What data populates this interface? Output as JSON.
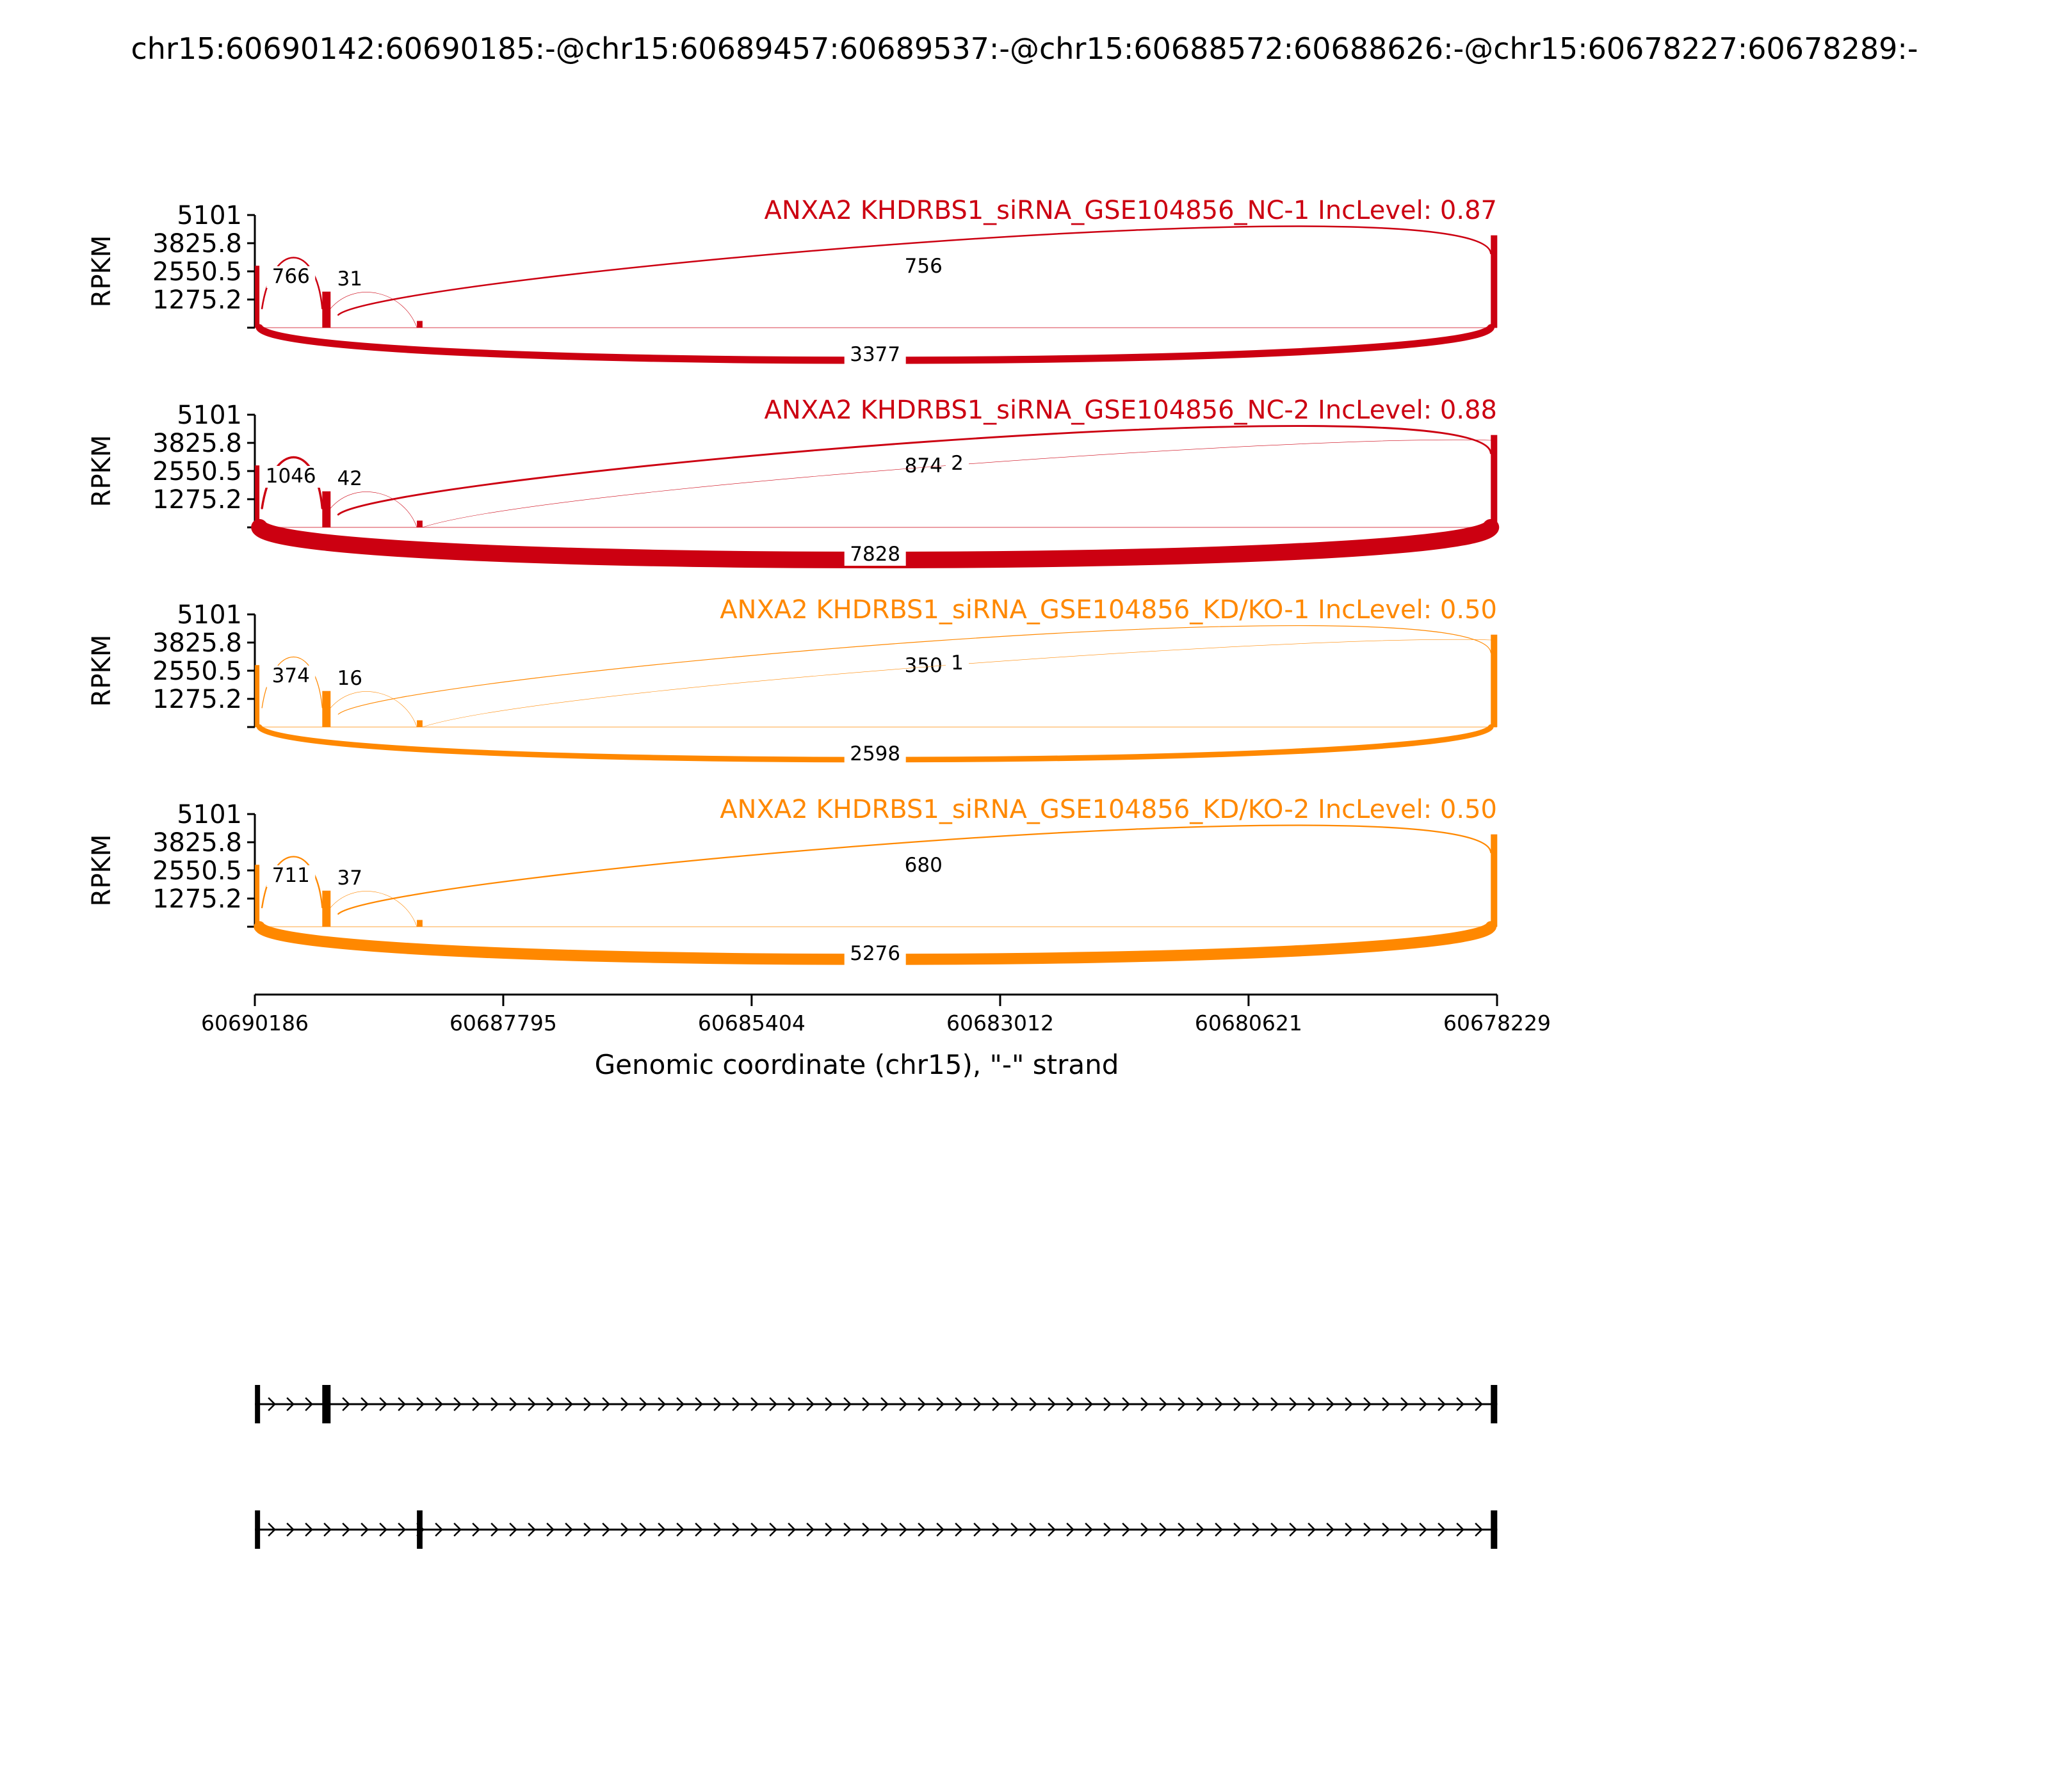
{
  "title": "chr15:60690142:60690185:-@chr15:60689457:60689537:-@chr15:60688572:60688626:-@chr15:60678227:60678289:-",
  "chart_data": {
    "type": "sashimi",
    "ylabel": "RPKM",
    "y_ticks": [
      "5101",
      "3825.8",
      "2550.5",
      "1275.2"
    ],
    "y_tick_values": [
      5101,
      3825.8,
      2550.5,
      1275.2
    ],
    "ylim": [
      0,
      5101
    ],
    "xlabel": "Genomic coordinate (chr15), \"-\" strand",
    "x_ticks": [
      "60690186",
      "60687795",
      "60685404",
      "60683012",
      "60680621",
      "60678229"
    ],
    "x_tick_values": [
      60690186,
      60687795,
      60685404,
      60683012,
      60680621,
      60678229
    ],
    "xlim": [
      60690186,
      60678229
    ],
    "strand": "-",
    "samples": [
      {
        "name": "ANXA2 KHDRBS1_siRNA_GSE104856_NC-1 IncLevel: 0.87",
        "color": "#cc0011",
        "junctions": [
          {
            "label": "766",
            "from": 60690142,
            "to": 60689537,
            "count": 766,
            "side": "above"
          },
          {
            "label": "31",
            "from": 60689457,
            "to": 60688626,
            "count": 31,
            "side": "above"
          },
          {
            "label": "756",
            "from": 60689457,
            "to": 60678289,
            "count": 756,
            "side": "above"
          },
          {
            "label": "3377",
            "from": 60690142,
            "to": 60678289,
            "count": 3377,
            "side": "below"
          }
        ]
      },
      {
        "name": "ANXA2 KHDRBS1_siRNA_GSE104856_NC-2 IncLevel: 0.88",
        "color": "#cc0011",
        "junctions": [
          {
            "label": "1046",
            "from": 60690142,
            "to": 60689537,
            "count": 1046,
            "side": "above"
          },
          {
            "label": "42",
            "from": 60689457,
            "to": 60688626,
            "count": 42,
            "side": "above"
          },
          {
            "label": "874",
            "from": 60689457,
            "to": 60678289,
            "count": 874,
            "side": "above"
          },
          {
            "label": "2",
            "from": 60688572,
            "to": 60678289,
            "count": 2,
            "side": "above"
          },
          {
            "label": "7828",
            "from": 60690142,
            "to": 60678289,
            "count": 7828,
            "side": "below"
          }
        ]
      },
      {
        "name": "ANXA2 KHDRBS1_siRNA_GSE104856_KD/KO-1 IncLevel: 0.50",
        "color": "#ff8800",
        "junctions": [
          {
            "label": "374",
            "from": 60690142,
            "to": 60689537,
            "count": 374,
            "side": "above"
          },
          {
            "label": "16",
            "from": 60689457,
            "to": 60688626,
            "count": 16,
            "side": "above"
          },
          {
            "label": "350",
            "from": 60689457,
            "to": 60678289,
            "count": 350,
            "side": "above"
          },
          {
            "label": "1",
            "from": 60688572,
            "to": 60678289,
            "count": 1,
            "side": "above"
          },
          {
            "label": "2598",
            "from": 60690142,
            "to": 60678289,
            "count": 2598,
            "side": "below"
          }
        ]
      },
      {
        "name": "ANXA2 KHDRBS1_siRNA_GSE104856_KD/KO-2 IncLevel: 0.50",
        "color": "#ff8800",
        "junctions": [
          {
            "label": "711",
            "from": 60690142,
            "to": 60689537,
            "count": 711,
            "side": "above"
          },
          {
            "label": "37",
            "from": 60689457,
            "to": 60688626,
            "count": 37,
            "side": "above"
          },
          {
            "label": "680",
            "from": 60689457,
            "to": 60678289,
            "count": 680,
            "side": "above"
          },
          {
            "label": "5276",
            "from": 60690142,
            "to": 60678289,
            "count": 5276,
            "side": "below"
          }
        ]
      }
    ],
    "isoforms": [
      {
        "exons": [
          [
            60690185,
            60690142
          ],
          [
            60689537,
            60689457
          ],
          [
            60678289,
            60678227
          ]
        ]
      },
      {
        "exons": [
          [
            60690185,
            60690142
          ],
          [
            60688626,
            60688572
          ],
          [
            60678289,
            60678227
          ]
        ]
      }
    ]
  }
}
